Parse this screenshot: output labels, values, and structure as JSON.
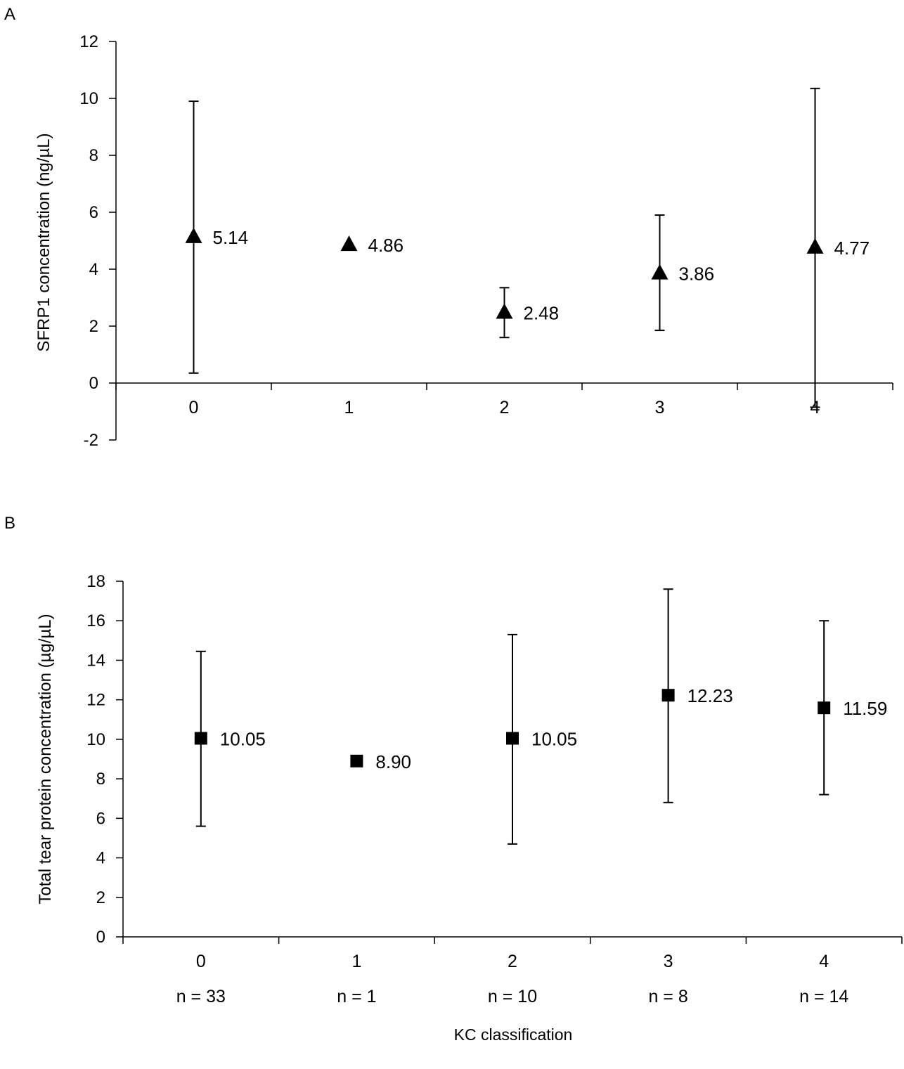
{
  "figure": {
    "xlabel": "KC classification"
  },
  "chart_data": [
    {
      "panel_label": "A",
      "type": "scatter",
      "marker": "triangle",
      "title": "",
      "xlabel": "",
      "ylabel": "SFRP1 concentration (ng/µL)",
      "categories": [
        "0",
        "1",
        "2",
        "3",
        "4"
      ],
      "ylim": [
        -2,
        12
      ],
      "yticks": [
        -2,
        0,
        2,
        4,
        6,
        8,
        10,
        12
      ],
      "ytick_labels": [
        "-2",
        "0",
        "2",
        "4",
        "6",
        "8",
        "10",
        "12"
      ],
      "grid": false,
      "series": [
        {
          "values": [
            5.14,
            4.86,
            2.48,
            3.86,
            4.77
          ],
          "labels": [
            "5.14",
            "4.86",
            "2.48",
            "3.86",
            "4.77"
          ],
          "error_low": [
            0.35,
            null,
            1.6,
            1.85,
            -0.85
          ],
          "error_high": [
            9.9,
            null,
            3.35,
            5.9,
            10.35
          ]
        }
      ]
    },
    {
      "panel_label": "B",
      "type": "scatter",
      "marker": "square",
      "title": "",
      "xlabel": "KC classification",
      "ylabel": "Total tear protein concentration (µg/µL)",
      "categories": [
        "0",
        "1",
        "2",
        "3",
        "4"
      ],
      "sample_sizes": [
        "n = 33",
        "n = 1",
        "n = 10",
        "n = 8",
        "n = 14"
      ],
      "ylim": [
        0,
        18
      ],
      "yticks": [
        0,
        2,
        4,
        6,
        8,
        10,
        12,
        14,
        16,
        18
      ],
      "ytick_labels": [
        "0",
        "2",
        "4",
        "6",
        "8",
        "10",
        "12",
        "14",
        "16",
        "18"
      ],
      "grid": false,
      "series": [
        {
          "values": [
            10.05,
            8.9,
            10.05,
            12.23,
            11.59
          ],
          "labels": [
            "10.05",
            "8.90",
            "10.05",
            "12.23",
            "11.59"
          ],
          "error_low": [
            5.6,
            null,
            4.7,
            6.8,
            7.2
          ],
          "error_high": [
            14.45,
            null,
            15.3,
            17.6,
            16.0
          ]
        }
      ]
    }
  ]
}
